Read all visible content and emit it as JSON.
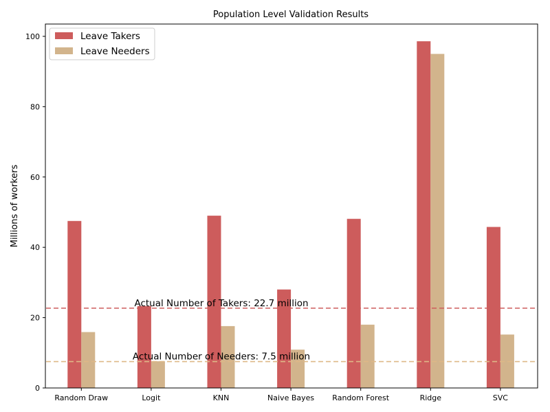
{
  "chart_data": {
    "type": "bar",
    "title": "Population Level Validation Results",
    "xlabel": "",
    "ylabel": "Millions of workers",
    "categories": [
      "Random Draw",
      "Logit",
      "KNN",
      "Naive Bayes",
      "Random Forest",
      "Ridge",
      "SVC"
    ],
    "series": [
      {
        "name": "Leave Takers",
        "color": "#cd5c5c",
        "values": [
          47.5,
          23.3,
          49.0,
          28.0,
          48.1,
          98.6,
          45.8
        ]
      },
      {
        "name": "Leave Needers",
        "color": "#d2b48c",
        "values": [
          15.9,
          7.6,
          17.6,
          10.9,
          18.0,
          95.0,
          15.2
        ]
      }
    ],
    "ylim": [
      0,
      103.5
    ],
    "yticks": [
      0,
      20,
      40,
      60,
      80,
      100
    ],
    "legend": "top-left",
    "grid": false,
    "reference_lines": [
      {
        "value": 22.7,
        "color": "#cd5c5c",
        "label": "Actual Number of Takers: 22.7 million"
      },
      {
        "value": 7.5,
        "color": "#deb887",
        "label": "Actual Number of Needers: 7.5 million"
      }
    ]
  }
}
